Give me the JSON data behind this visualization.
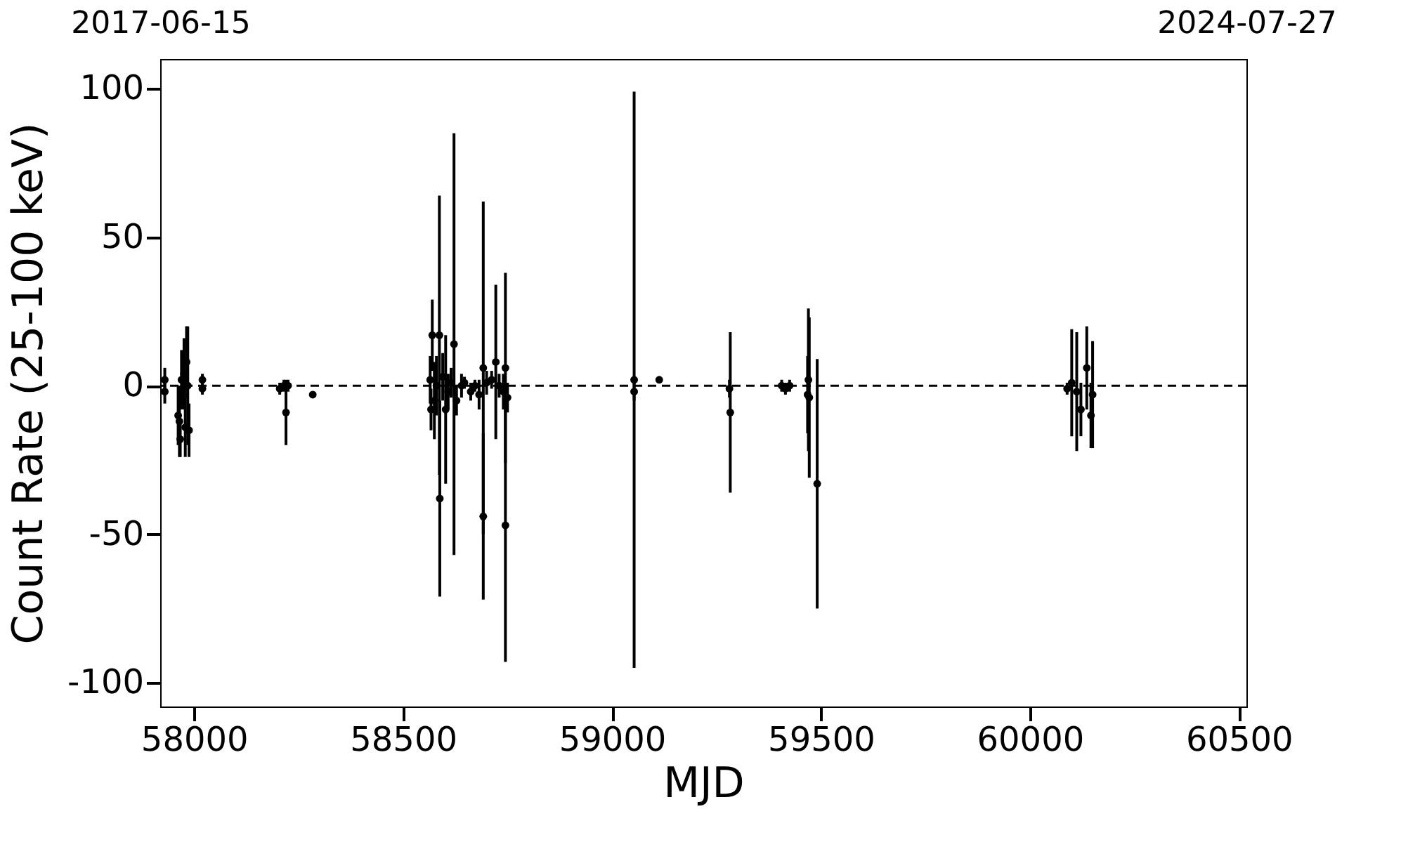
{
  "chart_data": {
    "type": "scatter",
    "xlabel": "MJD",
    "ylabel": "Count Rate (25-100 keV)",
    "x": [
      57930,
      57930,
      57962,
      57965,
      57967,
      57970,
      57976,
      57979,
      57982,
      57985,
      57988,
      58020,
      58020,
      58205,
      58215,
      58220,
      58225,
      58284,
      58565,
      58567,
      58570,
      58575,
      58580,
      58587,
      58588,
      58595,
      58602,
      58608,
      58615,
      58622,
      58628,
      58640,
      58647,
      58662,
      58672,
      58682,
      58692,
      58692,
      58700,
      58712,
      58722,
      58730,
      58740,
      58745,
      58745,
      58750,
      59053,
      59053,
      59113,
      59281,
      59283,
      59406,
      59415,
      59425,
      59468,
      59470,
      59472,
      59491,
      60089,
      60100,
      60112,
      60122,
      60136,
      60146,
      60150
    ],
    "values": [
      2,
      -2,
      -10,
      -12,
      -18,
      2,
      4,
      -14,
      8,
      0,
      -15,
      2,
      -1,
      -1,
      0,
      -9,
      0,
      -3,
      2,
      -8,
      17,
      -5,
      0,
      17,
      -38,
      3,
      -8,
      -2,
      1,
      14,
      -5,
      0,
      1,
      -2,
      0,
      -3,
      6,
      -44,
      1,
      2,
      8,
      0,
      -2,
      6,
      -47,
      -4,
      2,
      -2,
      2,
      -1,
      -9,
      0,
      -1,
      0,
      -3,
      2,
      -4,
      -33,
      -1,
      1,
      -2,
      -8,
      6,
      -10,
      -3
    ],
    "errors": [
      4,
      4,
      10,
      12,
      6,
      10,
      12,
      10,
      12,
      20,
      9,
      2,
      2,
      2,
      2,
      11,
      2,
      null,
      8,
      7,
      12,
      13,
      10,
      47,
      33,
      8,
      25,
      6,
      5,
      71,
      5,
      4,
      2,
      3,
      2,
      5,
      56,
      28,
      4,
      3,
      26,
      4,
      6,
      32,
      46,
      5,
      97,
      3,
      null,
      3,
      27,
      2,
      2,
      2,
      13,
      24,
      27,
      42,
      2,
      18,
      20,
      9,
      14,
      11,
      18
    ],
    "color": "#000000",
    "marker": "circle",
    "grid": false,
    "xlim": [
      57919,
      60518
    ],
    "xticks": [
      58000,
      58500,
      59000,
      59500,
      60000,
      60500
    ],
    "ylim": [
      -108,
      110
    ],
    "yticks": [
      -100,
      -50,
      0,
      50,
      100
    ],
    "x2lim": [
      "2017-06-15",
      "2024-07-27"
    ],
    "x2ticks": [
      "2017-06-15",
      "2024-07-27"
    ],
    "ref_lines": [
      {
        "axis": "y",
        "value": 0,
        "color": "#000000",
        "line_style": "dashed"
      }
    ]
  }
}
